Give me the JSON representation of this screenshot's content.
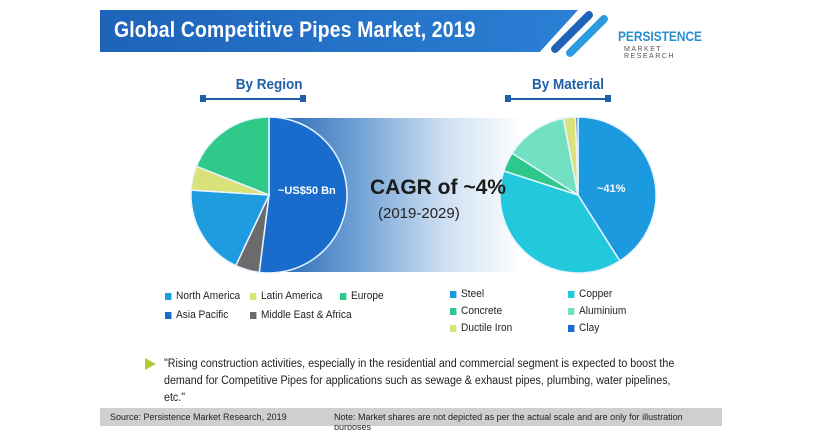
{
  "header": {
    "title": "Global Competitive Pipes Market, 2019",
    "logo_main": "PERSISTENCE",
    "logo_sub": "MARKET RESEARCH"
  },
  "center": {
    "cagr": "CAGR of ~4%",
    "period": "(2019-2029)"
  },
  "quote": "\"Rising construction activities, especially in the residential and commercial segment is expected to boost the demand for Competitive Pipes for applications such as sewage & exhaust pipes, plumbing, water pipelines, etc.\"",
  "footer": {
    "source": "Source: Persistence Market Research, 2019",
    "note": "Note: Market shares are not depicted as per the actual scale and are only for illustration purposes"
  },
  "chart_data": [
    {
      "type": "pie",
      "title": "By Region",
      "annotation": "~US$50 Bn",
      "slices": [
        {
          "name": "Asia Pacific",
          "value": 52,
          "color": "#1a6ccc"
        },
        {
          "name": "Middle East & Africa",
          "value": 5,
          "color": "#6b6b6b"
        },
        {
          "name": "North America",
          "value": 19,
          "color": "#1f9be0"
        },
        {
          "name": "Latin America",
          "value": 5,
          "color": "#d9e27a"
        },
        {
          "name": "Europe",
          "value": 19,
          "color": "#2fc98a"
        }
      ],
      "legend": [
        "North America",
        "Latin America",
        "Europe",
        "Asia Pacific",
        "Middle East & Africa"
      ],
      "legend_placement": "bottom"
    },
    {
      "type": "pie",
      "title": "By Material",
      "annotation": "~41%",
      "slices": [
        {
          "name": "Steel",
          "value": 41,
          "color": "#1c9ae0"
        },
        {
          "name": "Copper",
          "value": 39,
          "color": "#22c9dc"
        },
        {
          "name": "Concrete",
          "value": 4,
          "color": "#2ec98a"
        },
        {
          "name": "Aluminium",
          "value": 13,
          "color": "#74e0c2"
        },
        {
          "name": "Ductile Iron",
          "value": 2.5,
          "color": "#d9e27a"
        },
        {
          "name": "Clay",
          "value": 0.5,
          "color": "#1a6ccc"
        }
      ],
      "legend": [
        "Steel",
        "Copper",
        "Concrete",
        "Aluminium",
        "Ductile Iron",
        "Clay"
      ],
      "legend_placement": "bottom"
    }
  ]
}
